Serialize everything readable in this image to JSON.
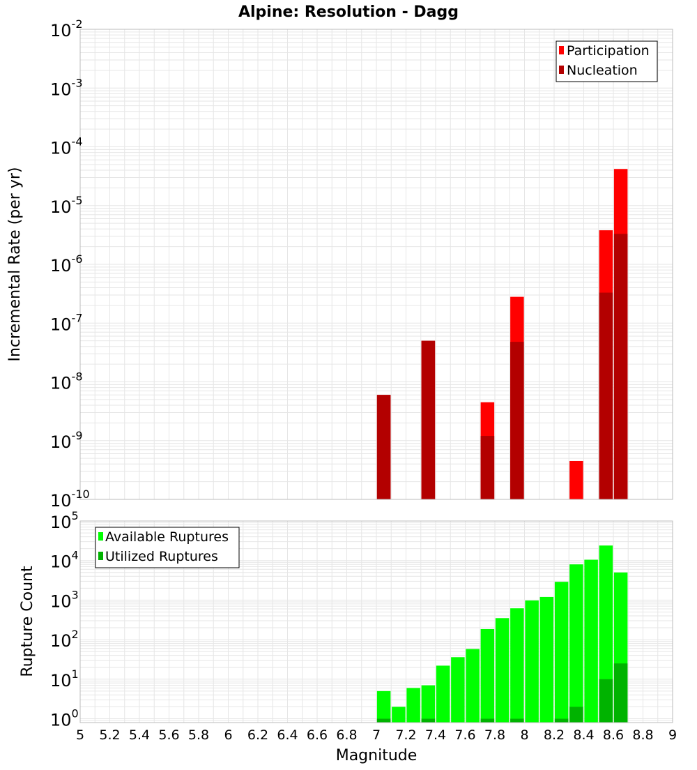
{
  "title": "Alpine: Resolution - Dagg",
  "xlabel": "Magnitude",
  "colors": {
    "participation": "#ff0000",
    "nucleation": "#b30000",
    "available": "#00ff00",
    "utilized": "#00b300",
    "grid": "#e6e6e6",
    "frame": "#bbbbbb"
  },
  "chart_data": [
    {
      "type": "bar",
      "title": "Alpine: Resolution - Dagg",
      "xlabel": "Magnitude",
      "ylabel": "Incremental Rate (per yr)",
      "xlim": [
        5,
        9
      ],
      "ylim": [
        1e-10,
        0.01
      ],
      "yscale": "log",
      "grid": true,
      "legend_position": "top-right",
      "x": [
        7.05,
        7.35,
        7.75,
        7.95,
        8.35,
        8.55,
        8.65
      ],
      "series": [
        {
          "name": "Participation",
          "values": [
            6e-09,
            5e-08,
            4.5e-09,
            2.8e-07,
            4.5e-10,
            3.8e-06,
            4.2e-05
          ]
        },
        {
          "name": "Nucleation",
          "values": [
            6e-09,
            5e-08,
            1.2e-09,
            4.8e-08,
            null,
            3.3e-07,
            3.3e-06
          ]
        }
      ]
    },
    {
      "type": "bar",
      "xlabel": "Magnitude",
      "ylabel": "Rupture Count",
      "xlim": [
        5,
        9
      ],
      "ylim": [
        0.8,
        100000.0
      ],
      "yscale": "log",
      "grid": true,
      "legend_position": "top-left",
      "x": [
        7.05,
        7.15,
        7.25,
        7.35,
        7.45,
        7.55,
        7.65,
        7.75,
        7.85,
        7.95,
        8.05,
        8.15,
        8.25,
        8.35,
        8.45,
        8.55,
        8.65
      ],
      "series": [
        {
          "name": "Available Ruptures",
          "values": [
            5,
            2,
            6,
            7,
            22,
            36,
            58,
            185,
            350,
            620,
            980,
            1200,
            2900,
            8000,
            10500,
            24000,
            5000
          ]
        },
        {
          "name": "Utilized Ruptures",
          "values": [
            1,
            null,
            null,
            1,
            null,
            null,
            null,
            1,
            null,
            1,
            null,
            null,
            1,
            2,
            null,
            10,
            25
          ]
        }
      ]
    }
  ],
  "xticks": [
    "5",
    "5.2",
    "5.4",
    "5.6",
    "5.8",
    "6",
    "6.2",
    "6.4",
    "6.6",
    "6.8",
    "7",
    "7.2",
    "7.4",
    "7.6",
    "7.8",
    "8",
    "8.2",
    "8.4",
    "8.6",
    "8.8",
    "9"
  ],
  "top_yticks": [
    {
      "base": "10",
      "exp": "-2"
    },
    {
      "base": "10",
      "exp": "-3"
    },
    {
      "base": "10",
      "exp": "-4"
    },
    {
      "base": "10",
      "exp": "-5"
    },
    {
      "base": "10",
      "exp": "-6"
    },
    {
      "base": "10",
      "exp": "-7"
    },
    {
      "base": "10",
      "exp": "-8"
    },
    {
      "base": "10",
      "exp": "-9"
    },
    {
      "base": "10",
      "exp": "-10"
    }
  ],
  "bottom_yticks": [
    {
      "base": "10",
      "exp": "5"
    },
    {
      "base": "10",
      "exp": "4"
    },
    {
      "base": "10",
      "exp": "3"
    },
    {
      "base": "10",
      "exp": "2"
    },
    {
      "base": "10",
      "exp": "1"
    },
    {
      "base": "10",
      "exp": "0"
    }
  ]
}
